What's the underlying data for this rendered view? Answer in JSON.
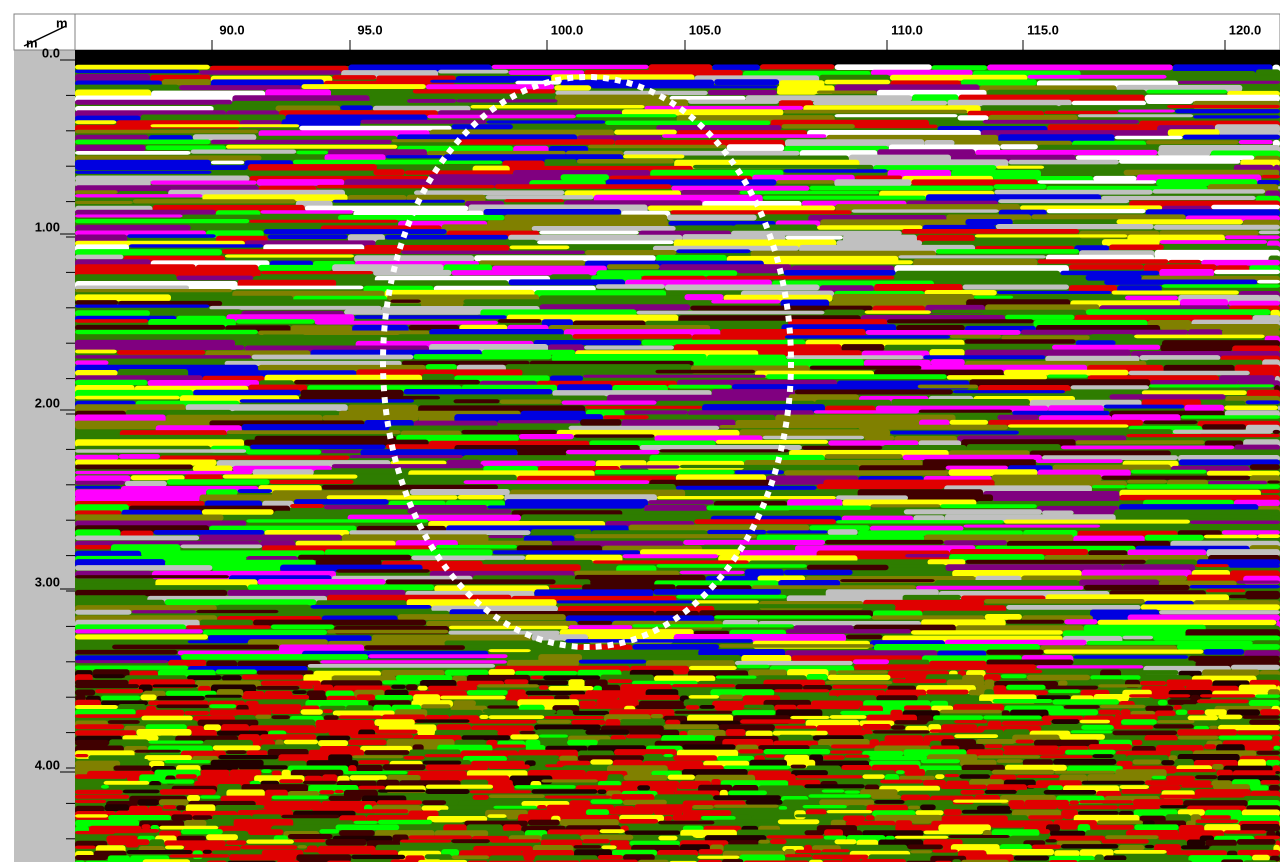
{
  "corner": {
    "x_unit": "m",
    "y_unit": "m"
  },
  "top_axis": {
    "labels": [
      "90.0",
      "95.0",
      "100.0",
      "105.0",
      "110.0",
      "115.0",
      "120.0"
    ]
  },
  "left_axis": {
    "labels": [
      "0.0",
      "1.00",
      "2.00",
      "3.00",
      "4.00"
    ]
  }
}
